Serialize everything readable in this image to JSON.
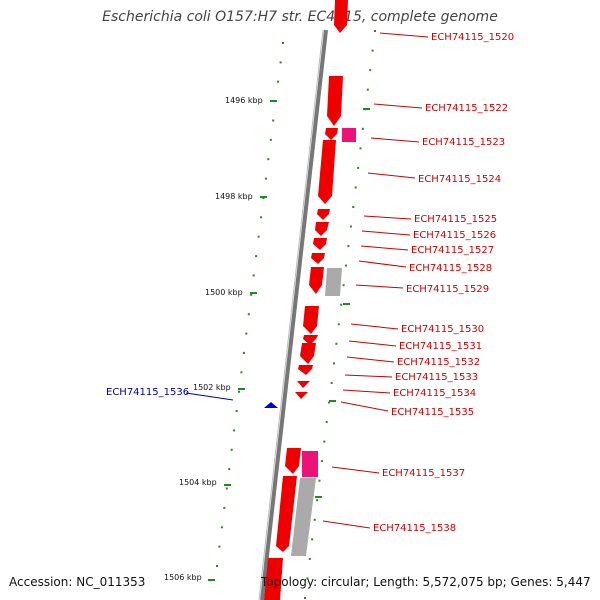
{
  "title": "Escherichia coli O157:H7 str. EC4115, complete genome",
  "accession": "Accession: NC_011353",
  "summary": "Topology: circular; Length: 5,572,075 bp; Genes: 5,447",
  "colors": {
    "gene": "#ee0000",
    "gene_pink": "#ee1177",
    "gene_gray": "#aaaaaa",
    "label_red": "#cc0000",
    "label_blue": "#0000aa",
    "tick_green": "#228822",
    "backbone": "#888888"
  },
  "kbp_ticks": [
    "1496 kbp",
    "1498 kbp",
    "1500 kbp",
    "1502 kbp",
    "1504 kbp",
    "1506 kbp"
  ],
  "gene_labels": [
    "ECH74115_1520",
    "ECH74115_1522",
    "ECH74115_1523",
    "ECH74115_1524",
    "ECH74115_1525",
    "ECH74115_1526",
    "ECH74115_1527",
    "ECH74115_1528",
    "ECH74115_1529",
    "ECH74115_1530",
    "ECH74115_1531",
    "ECH74115_1532",
    "ECH74115_1533",
    "ECH74115_1534",
    "ECH74115_1535",
    "ECH74115_1537",
    "ECH74115_1538"
  ],
  "left_label": "ECH74115_1536"
}
